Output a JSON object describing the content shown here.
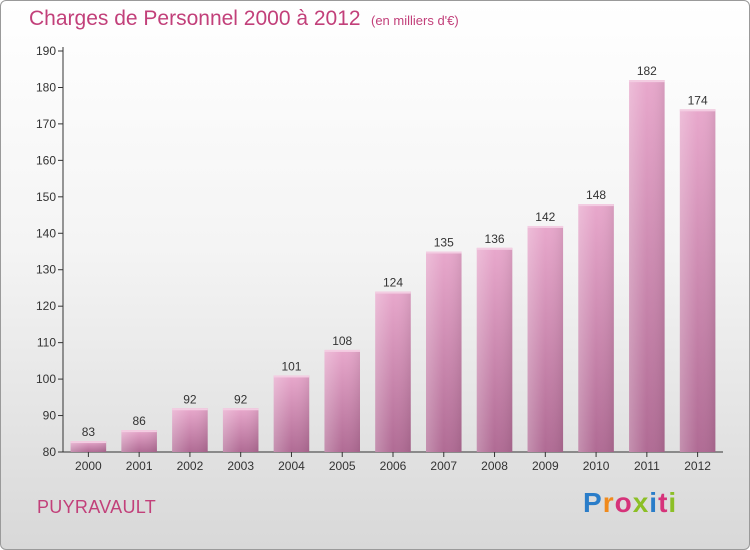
{
  "header": {
    "title": "Charges de Personnel 2000 à 2012",
    "subtitle": "(en milliers d'€)"
  },
  "footer": {
    "commune": "PUYRAVAULT",
    "logo_text": "Proxiti",
    "logo_colors": [
      "#2a7dc9",
      "#f08a1c",
      "#d6337a",
      "#8cbf26",
      "#2a7dc9",
      "#d6337a",
      "#8cbf26"
    ]
  },
  "colors": {
    "bar_top": "#e8a8cc",
    "bar_bottom": "#b06b94",
    "axis": "#333333",
    "text": "#333333"
  },
  "chart_data": {
    "type": "bar",
    "title": "Charges de Personnel 2000 à 2012",
    "subtitle": "(en milliers d'€)",
    "xlabel": "",
    "ylabel": "",
    "ylim": [
      80,
      190
    ],
    "yticks": [
      80,
      90,
      100,
      110,
      120,
      130,
      140,
      150,
      160,
      170,
      180,
      190
    ],
    "categories": [
      "2000",
      "2001",
      "2002",
      "2003",
      "2004",
      "2005",
      "2006",
      "2007",
      "2008",
      "2009",
      "2010",
      "2011",
      "2012"
    ],
    "values": [
      83,
      86,
      92,
      92,
      101,
      108,
      124,
      135,
      136,
      142,
      148,
      182,
      174
    ],
    "grid": false,
    "legend": "none"
  }
}
